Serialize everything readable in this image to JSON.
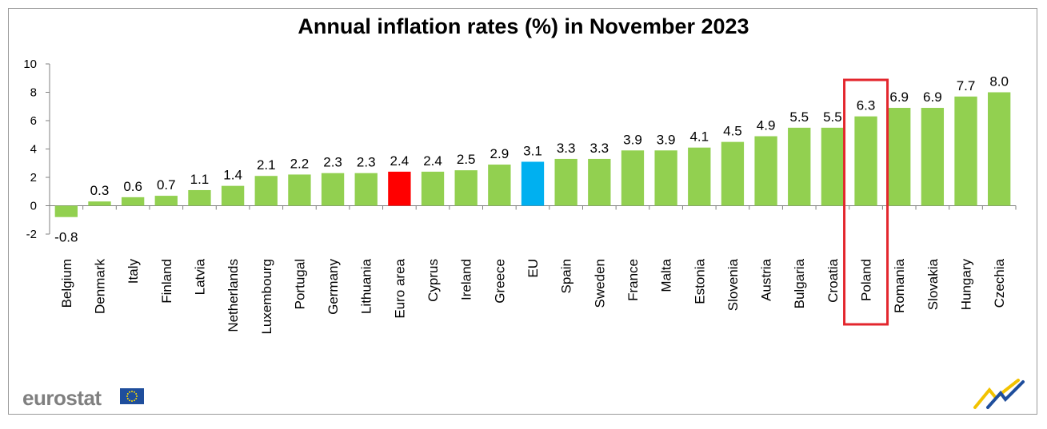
{
  "chart_data": {
    "type": "bar",
    "title": "Annual inflation rates (%) in November 2023",
    "categories": [
      "Belgium",
      "Denmark",
      "Italy",
      "Finland",
      "Latvia",
      "Netherlands",
      "Luxembourg",
      "Portugal",
      "Germany",
      "Lithuania",
      "Euro area",
      "Cyprus",
      "Ireland",
      "Greece",
      "EU",
      "Spain",
      "Sweden",
      "France",
      "Malta",
      "Estonia",
      "Slovenia",
      "Austria",
      "Bulgaria",
      "Croatia",
      "Poland",
      "Romania",
      "Slovakia",
      "Hungary",
      "Czechia"
    ],
    "values": [
      -0.8,
      0.3,
      0.6,
      0.7,
      1.1,
      1.4,
      2.1,
      2.2,
      2.3,
      2.3,
      2.4,
      2.4,
      2.5,
      2.9,
      3.1,
      3.3,
      3.3,
      3.9,
      3.9,
      4.1,
      4.5,
      4.9,
      5.5,
      5.5,
      6.3,
      6.9,
      6.9,
      7.7,
      8.0
    ],
    "value_labels": [
      "-0.8",
      "0.3",
      "0.6",
      "0.7",
      "1.1",
      "1.4",
      "2.1",
      "2.2",
      "2.3",
      "2.3",
      "2.4",
      "2.4",
      "2.5",
      "2.9",
      "3.1",
      "3.3",
      "3.3",
      "3.9",
      "3.9",
      "4.1",
      "4.5",
      "4.9",
      "5.5",
      "5.5",
      "6.3",
      "6.9",
      "6.9",
      "7.7",
      "8.0"
    ],
    "ylim": [
      -2,
      10
    ],
    "yticks": [
      -2,
      0,
      2,
      4,
      6,
      8,
      10
    ],
    "xlabel": "",
    "ylabel": "",
    "grid": false,
    "legend": "none",
    "colors": {
      "default": "#92d050",
      "Euro area": "#ff0000",
      "EU": "#00b0f0"
    },
    "highlight_box": {
      "category": "Poland",
      "color": "#e3262d"
    }
  },
  "brand": {
    "name": "eurostat",
    "flag_icon": "eu-flag-icon",
    "corner_icon": "eurostat-corner-logo-icon"
  }
}
